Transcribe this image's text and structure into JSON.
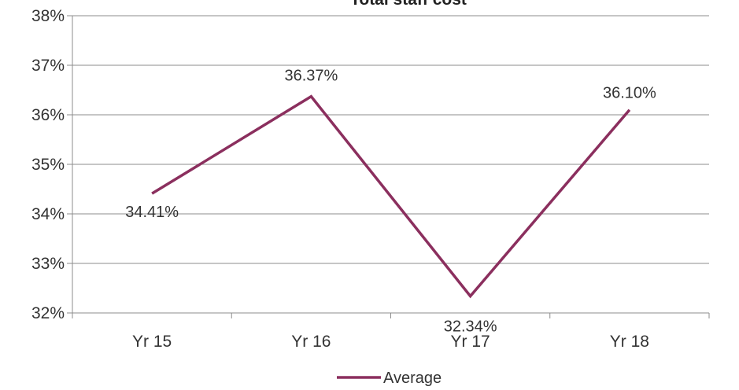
{
  "chart_data": {
    "type": "line",
    "title": "Total staff cost",
    "categories": [
      "Yr 15",
      "Yr 16",
      "Yr 17",
      "Yr 18"
    ],
    "series": [
      {
        "name": "Average",
        "values": [
          34.41,
          36.37,
          32.34,
          36.1
        ],
        "labels": [
          "34.41%",
          "36.37%",
          "32.34%",
          "36.10%"
        ],
        "color": "#8B2F5E"
      }
    ],
    "ylim": [
      32,
      38
    ],
    "yticks": [
      "32%",
      "33%",
      "34%",
      "35%",
      "36%",
      "37%",
      "38%"
    ],
    "grid": true,
    "legend_position": "bottom"
  }
}
